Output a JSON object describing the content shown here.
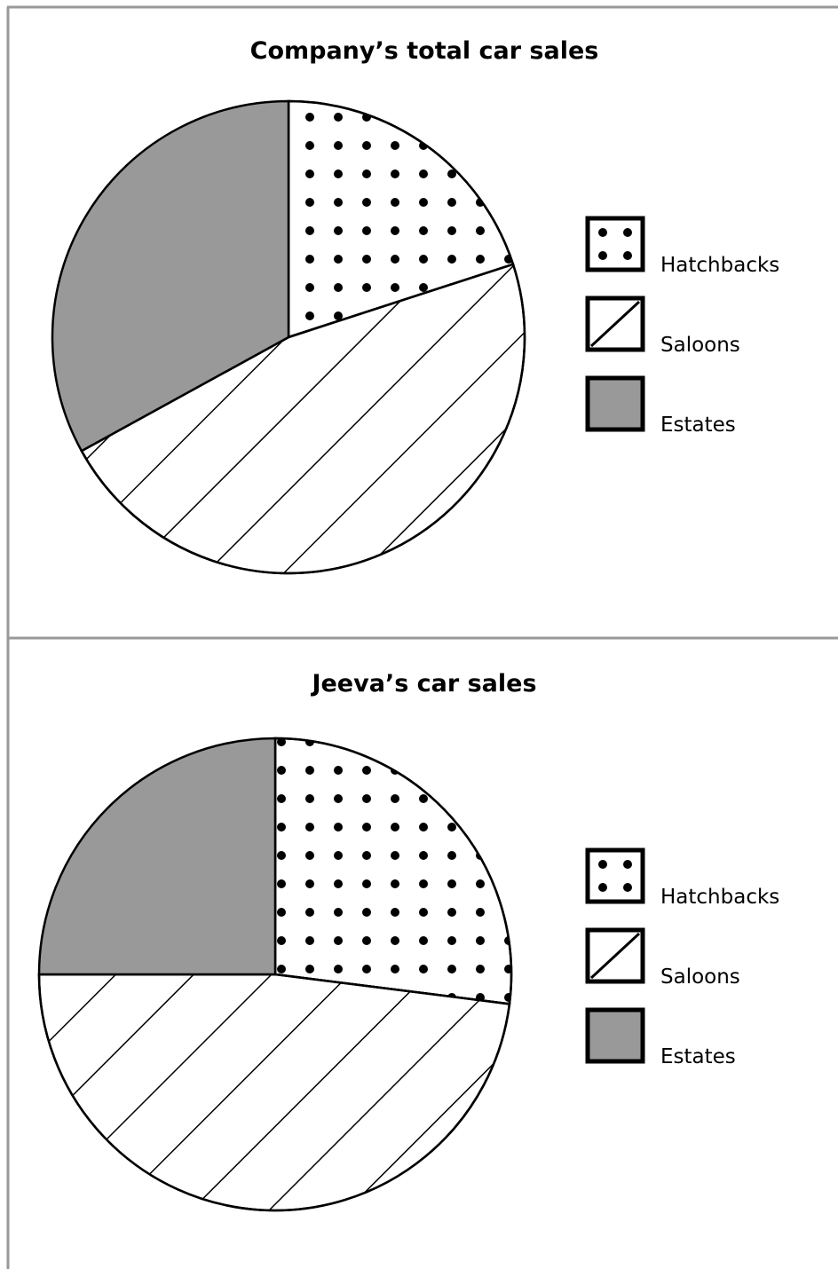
{
  "chart_data": [
    {
      "type": "pie",
      "title": "Company’s total car sales",
      "categories": [
        "Hatchbacks",
        "Saloons",
        "Estates"
      ],
      "values": [
        20,
        47,
        33
      ],
      "unit": "percent",
      "start_angle": "12 o'clock, clockwise",
      "legend": {
        "position": "right",
        "entries": [
          {
            "label": "Hatchbacks",
            "pattern": "dots"
          },
          {
            "label": "Saloons",
            "pattern": "diagonal-hatch"
          },
          {
            "label": "Estates",
            "pattern": "solid-grey"
          }
        ]
      }
    },
    {
      "type": "pie",
      "title": "Jeeva’s car sales",
      "categories": [
        "Hatchbacks",
        "Saloons",
        "Estates"
      ],
      "values": [
        27,
        48,
        25
      ],
      "unit": "percent",
      "start_angle": "12 o'clock, clockwise",
      "legend": {
        "position": "right",
        "entries": [
          {
            "label": "Hatchbacks",
            "pattern": "dots"
          },
          {
            "label": "Saloons",
            "pattern": "diagonal-hatch"
          },
          {
            "label": "Estates",
            "pattern": "solid-grey"
          }
        ]
      }
    }
  ],
  "colors": {
    "estates_fill": "#999999",
    "outline": "#000000",
    "frame": "#999999",
    "background": "#ffffff"
  }
}
